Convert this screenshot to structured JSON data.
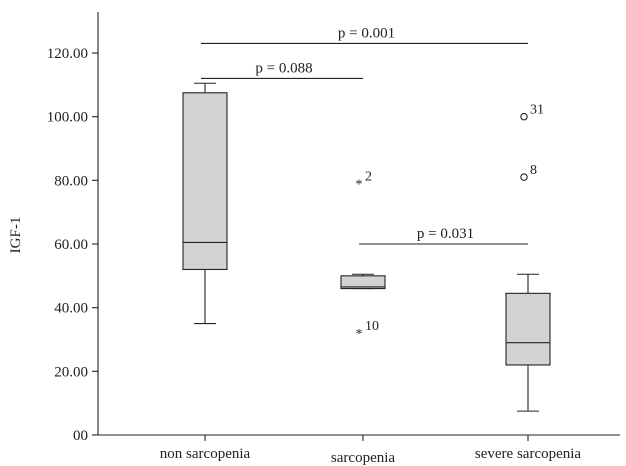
{
  "chart_data": {
    "type": "box",
    "ylabel": "IGF-1",
    "ylim": [
      0,
      130
    ],
    "yticks": [
      {
        "value": 0,
        "label": "00"
      },
      {
        "value": 20,
        "label": "20.00"
      },
      {
        "value": 40,
        "label": "40.00"
      },
      {
        "value": 60,
        "label": "60.00"
      },
      {
        "value": 80,
        "label": "80.00"
      },
      {
        "value": 100,
        "label": "100.00"
      },
      {
        "value": 120,
        "label": "120.00"
      }
    ],
    "categories": [
      "non sarcopenia",
      "sarcopenia",
      "severe sarcopenia"
    ],
    "boxes": [
      {
        "category": "non sarcopenia",
        "min": 35,
        "q1": 52,
        "median": 60.5,
        "q3": 107.5,
        "max": 110.5,
        "outliers": []
      },
      {
        "category": "sarcopenia",
        "min": 46,
        "q1": 46,
        "median": 46.5,
        "q3": 50,
        "max": 50.5,
        "outliers": [
          {
            "value": 79,
            "label": "2",
            "marker": "star"
          },
          {
            "value": 32,
            "label": "10",
            "marker": "star"
          }
        ]
      },
      {
        "category": "severe sarcopenia",
        "min": 7.5,
        "q1": 22,
        "median": 29,
        "q3": 44.5,
        "max": 50.5,
        "outliers": [
          {
            "value": 100,
            "label": "31",
            "marker": "circle"
          },
          {
            "value": 81,
            "label": "8",
            "marker": "circle"
          }
        ]
      }
    ],
    "significance": [
      {
        "from": "non sarcopenia",
        "to": "severe sarcopenia",
        "y": 123,
        "label": "p = 0.001"
      },
      {
        "from": "non sarcopenia",
        "to": "sarcopenia",
        "y": 112,
        "label": "p = 0.088"
      },
      {
        "from": "sarcopenia",
        "to": "severe sarcopenia",
        "y": 60,
        "label": "p = 0.031"
      }
    ],
    "grid": false,
    "box_fill": "#d3d3d3",
    "line_color": "#222222"
  }
}
